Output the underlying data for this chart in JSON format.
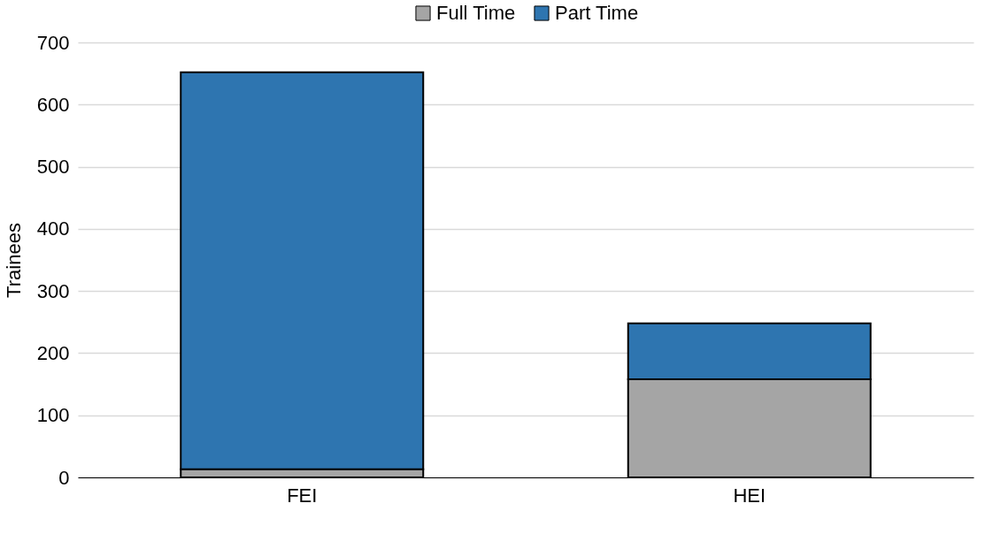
{
  "chart_data": {
    "type": "bar",
    "stacked": true,
    "ylabel": "Trainees",
    "categories": [
      "FEI",
      "HEI"
    ],
    "series": [
      {
        "name": "Full Time",
        "color": "#a5a5a5",
        "values": [
          13,
          158
        ]
      },
      {
        "name": "Part Time",
        "color": "#2e75b0",
        "values": [
          639,
          90
        ]
      }
    ],
    "ylim": [
      0,
      700
    ],
    "yticks": [
      0,
      100,
      200,
      300,
      400,
      500,
      600,
      700
    ],
    "grid": "y",
    "legend": "top"
  }
}
